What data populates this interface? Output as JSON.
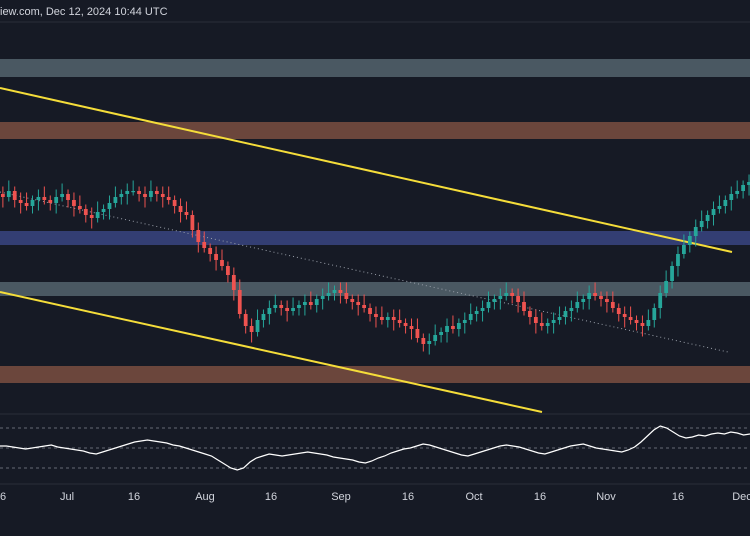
{
  "header": {
    "source_timestamp": "iew.com, Dec 12, 2024 10:44 UTC"
  },
  "colors": {
    "background": "#161a25",
    "bull_candle": "#26a69a",
    "bear_candle": "#ef5350",
    "trendline": "#f5dd3a",
    "zone_gray": "#6b8087",
    "zone_orange": "#a0634a",
    "zone_blue": "#4656a3",
    "rsi_line": "#ffffff",
    "axis_text": "#d1d4dc",
    "dotted_line": "#9aa0aa"
  },
  "chart_data": [
    {
      "type": "candlestick",
      "title": "",
      "xlabel": "",
      "ylabel": "",
      "x_ticks": [
        "6",
        "Jul",
        "16",
        "Aug",
        "16",
        "Sep",
        "16",
        "Oct",
        "16",
        "Nov",
        "16",
        "Dec"
      ],
      "zones": [
        {
          "name": "gray-top",
          "color": "gray"
        },
        {
          "name": "orange-upper",
          "color": "orange"
        },
        {
          "name": "blue-middle",
          "color": "blue"
        },
        {
          "name": "gray-lower",
          "color": "gray"
        },
        {
          "name": "orange-bottom",
          "color": "orange"
        }
      ],
      "lines": [
        {
          "name": "upper-trendline",
          "style": "solid"
        },
        {
          "name": "lower-trendline",
          "style": "solid"
        },
        {
          "name": "mid-channel-line",
          "style": "dotted"
        }
      ],
      "price_path": [
        62,
        61,
        63,
        60,
        59,
        58,
        60,
        61,
        60,
        59,
        61,
        62,
        60,
        58,
        57,
        55,
        54,
        56,
        57,
        59,
        61,
        62,
        63,
        63,
        62,
        61,
        63,
        62,
        61,
        60,
        58,
        56,
        55,
        50,
        46,
        44,
        42,
        40,
        38,
        35,
        30,
        22,
        18,
        16,
        20,
        22,
        24,
        25,
        24,
        23,
        24,
        25,
        26,
        25,
        27,
        28,
        29,
        30,
        29,
        27,
        26,
        25,
        24,
        22,
        21,
        20,
        21,
        20,
        19,
        18,
        17,
        14,
        12,
        13,
        15,
        16,
        18,
        17,
        19,
        20,
        22,
        23,
        24,
        26,
        27,
        28,
        29,
        28,
        26,
        23,
        21,
        19,
        18,
        19,
        20,
        21,
        23,
        24,
        26,
        27,
        29,
        28,
        27,
        26,
        24,
        22,
        21,
        20,
        19,
        18,
        20,
        24,
        29,
        33,
        38,
        42,
        45,
        48,
        51,
        53,
        55,
        57,
        58,
        60,
        62,
        63,
        65,
        66
      ]
    },
    {
      "type": "line",
      "title": "",
      "series": [
        {
          "values": [
            52,
            52,
            51,
            50,
            49,
            50,
            51,
            52,
            53,
            51,
            50,
            49,
            48,
            47,
            45,
            44,
            46,
            48,
            50,
            52,
            54,
            56,
            57,
            58,
            57,
            56,
            55,
            53,
            52,
            50,
            48,
            46,
            44,
            42,
            38,
            34,
            30,
            28,
            30,
            36,
            40,
            42,
            44,
            43,
            42,
            43,
            44,
            45,
            46,
            45,
            44,
            43,
            41,
            40,
            39,
            38,
            36,
            35,
            37,
            40,
            42,
            45,
            47,
            49,
            50,
            52,
            54,
            53,
            51,
            49,
            47,
            45,
            43,
            42,
            44,
            46,
            48,
            50,
            52,
            53,
            52,
            51,
            49,
            47,
            45,
            44,
            46,
            48,
            50,
            52,
            53,
            54,
            52,
            50,
            49,
            48,
            47,
            46,
            48,
            51,
            56,
            62,
            68,
            72,
            70,
            66,
            62,
            60,
            61,
            63,
            62,
            64,
            65,
            64,
            66,
            65,
            63,
            64
          ]
        }
      ],
      "guide_levels": [
        70,
        50,
        30
      ]
    }
  ]
}
